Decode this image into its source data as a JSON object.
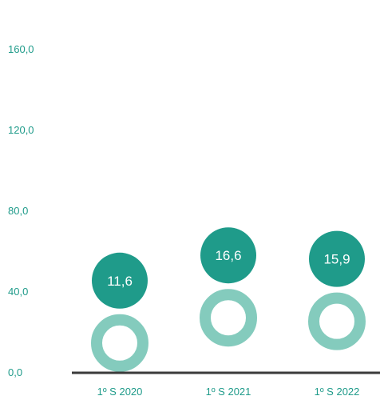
{
  "chart_data": {
    "type": "bar",
    "categories": [
      "1º S 2020",
      "1º S 2021",
      "1º S 2022"
    ],
    "values": [
      11.6,
      16.6,
      15.9
    ],
    "value_labels": [
      "11,6",
      "16,6",
      "15,9"
    ],
    "y_ticks": [
      "0,0",
      "40,0",
      "80,0",
      "120,0",
      "160,0"
    ],
    "y_tick_values": [
      0,
      40,
      80,
      120,
      160
    ],
    "ylim": [
      0,
      160
    ],
    "grid": false,
    "colors": {
      "bubble": "#1f9b8a",
      "ring": "#84cbbd",
      "axis": "#3a3a3a",
      "text": "#1f9b8a"
    }
  }
}
